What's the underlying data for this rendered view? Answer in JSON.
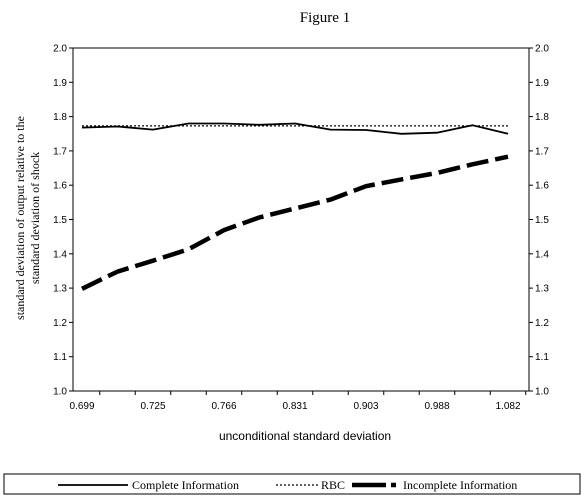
{
  "chart_data": {
    "type": "line",
    "title": "Figure 1",
    "xlabel": "unconditional standard deviation",
    "ylabel_line1": "standard deviation of output relative to the",
    "ylabel_line2": "standard deviation of shock",
    "categories": [
      "0.699",
      "",
      "0.725",
      "",
      "0.766",
      "",
      "0.831",
      "",
      "0.903",
      "",
      "0.988",
      "",
      "1.082"
    ],
    "x_tick_labels": [
      "0.699",
      "0.725",
      "0.766",
      "0.831",
      "0.903",
      "0.988",
      "1.082"
    ],
    "y_ticks_left": [
      "1.0",
      "1.1",
      "1.2",
      "1.3",
      "1.4",
      "1.5",
      "1.6",
      "1.7",
      "1.8",
      "1.9",
      "2.0"
    ],
    "y_ticks_right": [
      "1.0",
      "1.1",
      "1.2",
      "1.3",
      "1.4",
      "1.5",
      "1.6",
      "1.7",
      "1.8",
      "1.9",
      "2.0"
    ],
    "ylim": [
      1.0,
      2.0
    ],
    "grid": false,
    "legend_position": "bottom",
    "series": [
      {
        "name": "Complete Information",
        "style": "solid",
        "color": "#000000",
        "values": [
          1.768,
          1.771,
          1.762,
          1.78,
          1.78,
          1.776,
          1.78,
          1.762,
          1.761,
          1.75,
          1.753,
          1.775,
          1.75
        ]
      },
      {
        "name": "RBC",
        "style": "dotted",
        "color": "#000000",
        "values": [
          1.773,
          1.773,
          1.773,
          1.773,
          1.773,
          1.773,
          1.773,
          1.773,
          1.773,
          1.773,
          1.773,
          1.773,
          1.773
        ]
      },
      {
        "name": "Incomplete Information",
        "style": "dashed-thick",
        "color": "#000000",
        "values": [
          1.298,
          1.348,
          1.38,
          1.413,
          1.469,
          1.506,
          1.532,
          1.558,
          1.597,
          1.617,
          1.636,
          1.661,
          1.683
        ]
      }
    ]
  }
}
